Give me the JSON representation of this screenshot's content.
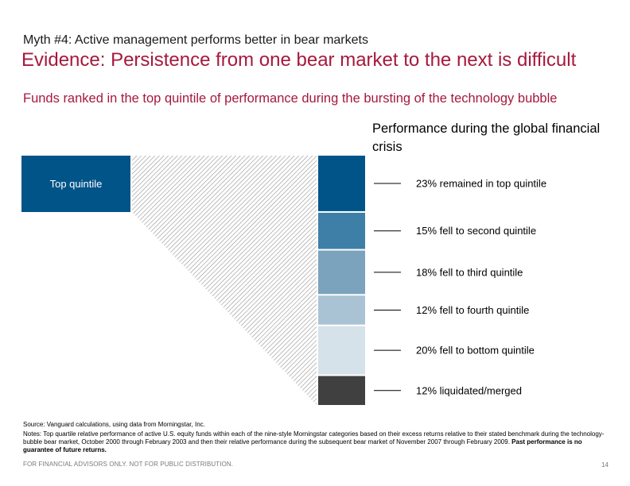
{
  "slide": {
    "myth": "Myth #4: Active management performs better in bear markets",
    "headline": "Evidence: Persistence from one bear market to the next is difficult",
    "subtitle": "Funds ranked in the top quintile of performance during the bursting of the technology bubble",
    "panel_title": "Performance during the global financial crisis",
    "source": "Source: Vanguard calculations, using data from Morningstar, Inc.",
    "notes": "Notes:  Top quartile relative performance of active U.S. equity funds within each of the nine-style Morningstar categories based on their excess returns relative to their stated benchmark during the technology-bubble bear market, October 2000 through February 2003 and then their relative performance during the subsequent bear market of November 2007 through February 2009.",
    "notes_bold": "Past performance is no guarantee of future returns.",
    "disclaimer": "FOR FINANCIAL ADVISORS ONLY. NOT FOR PUBLIC DISTRIBUTION.",
    "page_number": "14"
  },
  "chart_data": {
    "type": "bar",
    "orientation": "stacked-vertical",
    "source_label": "Top quintile",
    "categories": [
      "23% remained in top quintile",
      "15% fell to second quintile",
      "18% fell to third quintile",
      "12% fell to fourth quintile",
      "20% fell to bottom quintile",
      "12% liquidated/merged"
    ],
    "values": [
      23,
      15,
      18,
      12,
      20,
      12
    ],
    "unit": "%",
    "colors": [
      "#005488",
      "#3d7fa6",
      "#7ba3bd",
      "#aac3d4",
      "#d6e2ea",
      "#404040"
    ],
    "source_color": "#005488",
    "hatch_color": "#9a9a9a"
  }
}
